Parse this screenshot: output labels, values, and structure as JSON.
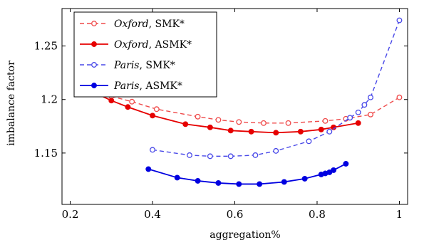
{
  "chart_data": {
    "type": "line",
    "xlabel": "aggregation%",
    "ylabel": "imbalance factor",
    "xlim": [
      0.18,
      1.02
    ],
    "ylim": [
      1.102,
      1.285
    ],
    "xticks": [
      0.2,
      0.4,
      0.6,
      0.8,
      1.0
    ],
    "xtick_labels": [
      "0.2",
      "0.4",
      "0.6",
      "0.8",
      "1"
    ],
    "yticks": [
      1.15,
      1.2,
      1.25
    ],
    "ytick_labels": [
      "1.15",
      "1.2",
      "1.25"
    ],
    "grid": false,
    "legend_position": "top-left",
    "series": [
      {
        "name": "Oxford, SMK*",
        "name_italic": "Oxford",
        "name_rest": ", SMK*",
        "color": "#ef4a4a",
        "dashed": true,
        "filled": false,
        "x": [
          0.25,
          0.3,
          0.35,
          0.41,
          0.51,
          0.56,
          0.61,
          0.67,
          0.73,
          0.82,
          0.87,
          0.93,
          1.0
        ],
        "y": [
          1.209,
          1.203,
          1.198,
          1.191,
          1.184,
          1.181,
          1.179,
          1.178,
          1.178,
          1.18,
          1.182,
          1.186,
          1.202
        ]
      },
      {
        "name": "Oxford, ASMK*",
        "name_italic": "Oxford",
        "name_rest": ", ASMK*",
        "color": "#e60000",
        "dashed": false,
        "filled": true,
        "x": [
          0.25,
          0.3,
          0.34,
          0.4,
          0.48,
          0.54,
          0.59,
          0.64,
          0.7,
          0.76,
          0.81,
          0.84,
          0.9
        ],
        "y": [
          1.208,
          1.199,
          1.193,
          1.185,
          1.177,
          1.174,
          1.171,
          1.17,
          1.169,
          1.17,
          1.172,
          1.174,
          1.178
        ]
      },
      {
        "name": "Paris, SMK*",
        "name_italic": "Paris",
        "name_rest": ", SMK*",
        "color": "#4848e8",
        "dashed": true,
        "filled": false,
        "x": [
          0.4,
          0.49,
          0.54,
          0.59,
          0.65,
          0.7,
          0.78,
          0.83,
          0.88,
          0.9,
          0.915,
          0.93,
          1.0
        ],
        "y": [
          1.153,
          1.148,
          1.147,
          1.147,
          1.148,
          1.152,
          1.161,
          1.17,
          1.183,
          1.188,
          1.195,
          1.202,
          1.274
        ]
      },
      {
        "name": "Paris, ASMK*",
        "name_italic": "Paris",
        "name_rest": ", ASMK*",
        "color": "#0000e0",
        "dashed": false,
        "filled": true,
        "x": [
          0.39,
          0.46,
          0.51,
          0.56,
          0.61,
          0.66,
          0.72,
          0.77,
          0.81,
          0.82,
          0.83,
          0.84,
          0.87
        ],
        "y": [
          1.135,
          1.127,
          1.124,
          1.122,
          1.121,
          1.121,
          1.123,
          1.126,
          1.13,
          1.131,
          1.132,
          1.134,
          1.14
        ]
      }
    ]
  }
}
